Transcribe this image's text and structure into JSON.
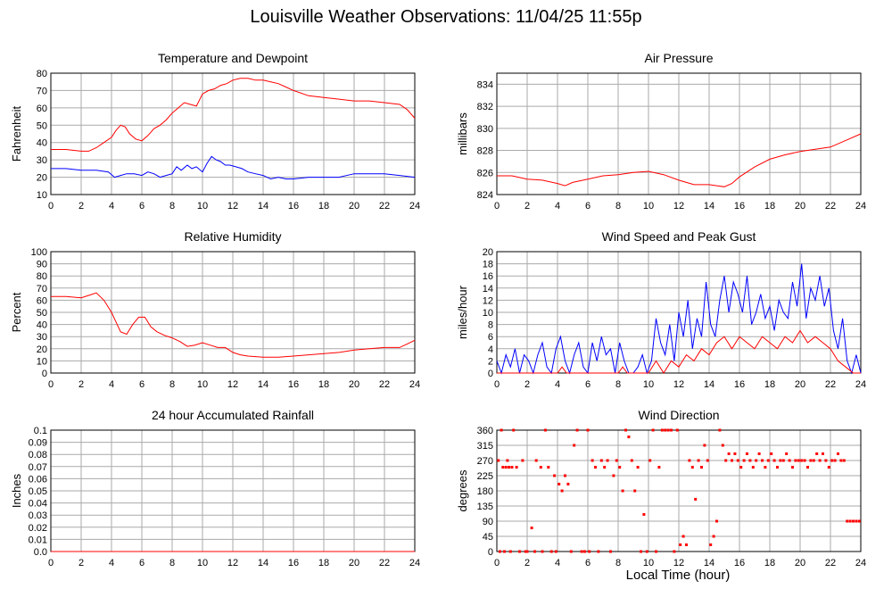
{
  "page_title": "Louisville Weather Observations: 11/04/25 11:55p",
  "x_axis_title": "Local Time (hour)",
  "chart_data": [
    {
      "id": "temperature",
      "type": "line",
      "title": "Temperature and Dewpoint",
      "ylabel": "Fahrenheit",
      "xlim": [
        0,
        24
      ],
      "ylim": [
        10,
        80
      ],
      "xticks": [
        0,
        2,
        4,
        6,
        8,
        10,
        12,
        14,
        16,
        18,
        20,
        22,
        24
      ],
      "yticks": [
        10,
        20,
        30,
        40,
        50,
        60,
        70,
        80
      ],
      "series": [
        {
          "color": "#ff0000",
          "x": [
            0,
            1,
            2,
            2.5,
            3,
            3.5,
            4,
            4.3,
            4.6,
            4.9,
            5.2,
            5.6,
            6,
            6.4,
            6.8,
            7.2,
            7.6,
            8,
            8.4,
            8.8,
            9.2,
            9.6,
            10,
            10.4,
            10.8,
            11.2,
            11.6,
            12,
            12.5,
            13,
            13.5,
            14,
            14.5,
            15,
            15.5,
            16,
            17,
            18,
            19,
            20,
            21,
            22,
            23,
            23.5,
            24
          ],
          "y": [
            36,
            36,
            35,
            35,
            37,
            40,
            43,
            47,
            50,
            49,
            45,
            42,
            41,
            44,
            48,
            50,
            53,
            57,
            60,
            63,
            62,
            61,
            68,
            70,
            71,
            73,
            74,
            76,
            77,
            77,
            76,
            76,
            75,
            74,
            72,
            70,
            67,
            66,
            65,
            64,
            64,
            63,
            62,
            59,
            54
          ]
        },
        {
          "color": "#0000ff",
          "x": [
            0,
            1,
            2,
            3,
            3.8,
            4.2,
            4.6,
            5,
            5.5,
            6,
            6.4,
            6.8,
            7.2,
            7.6,
            8,
            8.3,
            8.6,
            9,
            9.3,
            9.6,
            10,
            10.3,
            10.6,
            10.9,
            11.2,
            11.5,
            11.8,
            12.2,
            12.6,
            13,
            13.5,
            14,
            14.5,
            15,
            15.5,
            16,
            17,
            18,
            19,
            20,
            21,
            22,
            23,
            24
          ],
          "y": [
            25,
            25,
            24,
            24,
            23,
            20,
            21,
            22,
            22,
            21,
            23,
            22,
            20,
            21,
            22,
            26,
            24,
            27,
            25,
            26,
            23,
            28,
            32,
            30,
            29,
            27,
            27,
            26,
            25,
            23,
            22,
            21,
            19,
            20,
            19,
            19,
            20,
            20,
            20,
            22,
            22,
            22,
            21,
            20
          ]
        }
      ]
    },
    {
      "id": "pressure",
      "type": "line",
      "title": "Air Pressure",
      "ylabel": "millibars",
      "xlim": [
        0,
        24
      ],
      "ylim": [
        824,
        835
      ],
      "xticks": [
        0,
        2,
        4,
        6,
        8,
        10,
        12,
        14,
        16,
        18,
        20,
        22,
        24
      ],
      "yticks": [
        824,
        826,
        828,
        830,
        832,
        834
      ],
      "series": [
        {
          "color": "#ff0000",
          "x": [
            0,
            1,
            2,
            3,
            4,
            4.5,
            5,
            6,
            7,
            8,
            9,
            10,
            11,
            12,
            13,
            14,
            14.5,
            15,
            15.5,
            16,
            17,
            18,
            19,
            20,
            21,
            22,
            23,
            24
          ],
          "y": [
            825.7,
            825.7,
            825.4,
            825.3,
            825.0,
            824.8,
            825.1,
            825.4,
            825.7,
            825.8,
            826.0,
            826.1,
            825.8,
            825.3,
            824.9,
            824.9,
            824.8,
            824.7,
            825.0,
            825.6,
            826.5,
            827.2,
            827.6,
            827.9,
            828.1,
            828.3,
            828.9,
            829.5
          ]
        }
      ]
    },
    {
      "id": "humidity",
      "type": "line",
      "title": "Relative Humidity",
      "ylabel": "Percent",
      "xlim": [
        0,
        24
      ],
      "ylim": [
        0,
        100
      ],
      "xticks": [
        0,
        2,
        4,
        6,
        8,
        10,
        12,
        14,
        16,
        18,
        20,
        22,
        24
      ],
      "yticks": [
        0,
        10,
        20,
        30,
        40,
        50,
        60,
        70,
        80,
        90,
        100
      ],
      "series": [
        {
          "color": "#ff0000",
          "x": [
            0,
            1,
            2,
            2.5,
            3,
            3.5,
            4,
            4.3,
            4.6,
            5,
            5.4,
            5.8,
            6.2,
            6.6,
            7,
            7.5,
            8,
            8.5,
            9,
            9.5,
            10,
            10.5,
            11,
            11.5,
            12,
            12.5,
            13,
            14,
            15,
            16,
            17,
            18,
            19,
            20,
            21,
            22,
            23,
            23.5,
            24
          ],
          "y": [
            63,
            63,
            62,
            64,
            66,
            60,
            50,
            42,
            34,
            32,
            40,
            46,
            46,
            38,
            34,
            31,
            29,
            26,
            22,
            23,
            25,
            23,
            21,
            21,
            17,
            15,
            14,
            13,
            13,
            14,
            15,
            16,
            17,
            19,
            20,
            21,
            21,
            24,
            27
          ]
        }
      ]
    },
    {
      "id": "wind",
      "type": "line",
      "title": "Wind Speed and Peak Gust",
      "ylabel": "miles/hour",
      "xlim": [
        0,
        24
      ],
      "ylim": [
        0,
        20
      ],
      "xticks": [
        0,
        2,
        4,
        6,
        8,
        10,
        12,
        14,
        16,
        18,
        20,
        22,
        24
      ],
      "yticks": [
        0,
        2,
        4,
        6,
        8,
        10,
        12,
        14,
        16,
        18,
        20
      ],
      "series": [
        {
          "color": "#0000ff",
          "x": [
            0,
            0.3,
            0.6,
            0.9,
            1.2,
            1.5,
            1.8,
            2.1,
            2.4,
            2.7,
            3,
            3.3,
            3.6,
            3.9,
            4.2,
            4.5,
            4.8,
            5.1,
            5.4,
            5.7,
            6,
            6.3,
            6.6,
            6.9,
            7.2,
            7.5,
            7.8,
            8.1,
            8.4,
            8.7,
            9,
            9.3,
            9.6,
            9.9,
            10.2,
            10.5,
            10.8,
            11.1,
            11.4,
            11.7,
            12,
            12.3,
            12.6,
            12.9,
            13.2,
            13.5,
            13.8,
            14.1,
            14.4,
            14.7,
            15,
            15.3,
            15.6,
            15.9,
            16.2,
            16.5,
            16.8,
            17.1,
            17.4,
            17.7,
            18,
            18.3,
            18.6,
            18.9,
            19.2,
            19.5,
            19.8,
            20.1,
            20.4,
            20.7,
            21,
            21.3,
            21.6,
            21.9,
            22.2,
            22.5,
            22.8,
            23.1,
            23.4,
            23.7,
            24
          ],
          "y": [
            2,
            0,
            3,
            1,
            4,
            0,
            3,
            2,
            0,
            3,
            5,
            1,
            0,
            4,
            6,
            2,
            0,
            3,
            5,
            1,
            0,
            5,
            2,
            6,
            3,
            4,
            0,
            5,
            2,
            0,
            0,
            1,
            3,
            0,
            2,
            9,
            5,
            3,
            8,
            2,
            10,
            6,
            12,
            4,
            9,
            6,
            15,
            8,
            6,
            12,
            16,
            10,
            15,
            13,
            10,
            16,
            8,
            10,
            13,
            9,
            11,
            7,
            12,
            10,
            9,
            15,
            11,
            18,
            9,
            14,
            12,
            16,
            11,
            14,
            7,
            4,
            9,
            2,
            0,
            3,
            0
          ]
        },
        {
          "color": "#ff0000",
          "x": [
            0,
            1,
            2,
            3,
            4,
            4.3,
            4.6,
            5,
            6,
            7,
            8,
            8.3,
            8.6,
            9,
            10,
            10.5,
            11,
            11.5,
            12,
            12.5,
            13,
            13.5,
            14,
            14.5,
            15,
            15.5,
            16,
            16.5,
            17,
            17.5,
            18,
            18.5,
            19,
            19.5,
            20,
            20.5,
            21,
            21.5,
            22,
            22.5,
            23,
            23.5,
            24
          ],
          "y": [
            0,
            0,
            0,
            0,
            0,
            1,
            0,
            0,
            0,
            0,
            0,
            1,
            0,
            0,
            0,
            2,
            0,
            2,
            1,
            3,
            2,
            4,
            3,
            5,
            6,
            4,
            6,
            5,
            4,
            6,
            5,
            4,
            6,
            5,
            7,
            5,
            6,
            5,
            4,
            2,
            1,
            0,
            0
          ]
        }
      ]
    },
    {
      "id": "rainfall",
      "type": "line",
      "title": "24 hour Accumulated Rainfall",
      "ylabel": "Inches",
      "xlim": [
        0,
        24
      ],
      "ylim": [
        0,
        0.1
      ],
      "xticks": [
        0,
        2,
        4,
        6,
        8,
        10,
        12,
        14,
        16,
        18,
        20,
        22,
        24
      ],
      "yticks": [
        0.0,
        0.01,
        0.02,
        0.03,
        0.04,
        0.05,
        0.06,
        0.07,
        0.08,
        0.09,
        0.1
      ],
      "ytick_labels": [
        "0.0",
        "0.01",
        "0.02",
        "0.03",
        "0.04",
        "0.05",
        "0.06",
        "0.07",
        "0.08",
        "0.09",
        "0.1"
      ],
      "series": [
        {
          "color": "#ff0000",
          "x": [
            0,
            24
          ],
          "y": [
            0,
            0
          ]
        }
      ]
    },
    {
      "id": "direction",
      "type": "scatter",
      "title": "Wind Direction",
      "ylabel": "degrees",
      "xlim": [
        0,
        24
      ],
      "ylim": [
        0,
        360
      ],
      "xticks": [
        0,
        2,
        4,
        6,
        8,
        10,
        12,
        14,
        16,
        18,
        20,
        22,
        24
      ],
      "yticks": [
        0,
        45,
        90,
        135,
        180,
        225,
        270,
        315,
        360
      ],
      "series": [
        {
          "color": "#ff0000",
          "x": [
            0.1,
            0.2,
            0.3,
            0.4,
            0.5,
            0.6,
            0.7,
            0.8,
            0.9,
            1.0,
            1.1,
            1.3,
            1.5,
            1.7,
            1.9,
            2.0,
            2.3,
            2.5,
            2.6,
            2.9,
            3.0,
            3.2,
            3.4,
            3.6,
            3.8,
            3.9,
            4.1,
            4.3,
            4.5,
            4.7,
            4.9,
            5.1,
            5.3,
            5.6,
            5.8,
            6.0,
            6.1,
            6.3,
            6.5,
            6.7,
            6.9,
            7.1,
            7.3,
            7.5,
            7.7,
            7.9,
            8.1,
            8.3,
            8.5,
            8.7,
            8.9,
            9.1,
            9.3,
            9.5,
            9.7,
            9.9,
            10.1,
            10.3,
            10.5,
            10.7,
            10.9,
            11.1,
            11.3,
            11.5,
            11.7,
            11.9,
            12.1,
            12.3,
            12.5,
            12.7,
            12.9,
            13.1,
            13.3,
            13.5,
            13.7,
            13.9,
            14.1,
            14.3,
            14.5,
            14.7,
            14.9,
            15.1,
            15.3,
            15.5,
            15.7,
            15.9,
            16.1,
            16.3,
            16.5,
            16.7,
            16.9,
            17.1,
            17.3,
            17.5,
            17.7,
            17.9,
            18.1,
            18.3,
            18.5,
            18.7,
            18.9,
            19.1,
            19.3,
            19.5,
            19.7,
            19.9,
            20.1,
            20.3,
            20.5,
            20.7,
            20.9,
            21.1,
            21.3,
            21.5,
            21.7,
            21.9,
            22.1,
            22.3,
            22.5,
            22.7,
            22.9,
            23.1,
            23.3,
            23.5,
            23.7,
            23.9
          ],
          "y": [
            270,
            0,
            360,
            250,
            0,
            250,
            270,
            250,
            0,
            250,
            360,
            250,
            0,
            270,
            0,
            0,
            70,
            0,
            270,
            250,
            0,
            360,
            250,
            0,
            225,
            0,
            200,
            180,
            225,
            200,
            0,
            315,
            360,
            0,
            0,
            360,
            0,
            270,
            250,
            0,
            270,
            250,
            270,
            0,
            225,
            270,
            250,
            180,
            360,
            340,
            270,
            180,
            250,
            0,
            110,
            0,
            270,
            360,
            0,
            250,
            360,
            360,
            360,
            360,
            0,
            360,
            20,
            45,
            20,
            270,
            250,
            155,
            270,
            250,
            315,
            270,
            20,
            45,
            90,
            360,
            315,
            270,
            290,
            270,
            290,
            270,
            250,
            270,
            290,
            270,
            250,
            270,
            290,
            270,
            250,
            270,
            290,
            270,
            250,
            270,
            270,
            290,
            270,
            250,
            270,
            270,
            270,
            270,
            250,
            270,
            270,
            290,
            270,
            290,
            270,
            250,
            270,
            270,
            290,
            270,
            270,
            90,
            90,
            90,
            90,
            90
          ]
        }
      ]
    }
  ]
}
